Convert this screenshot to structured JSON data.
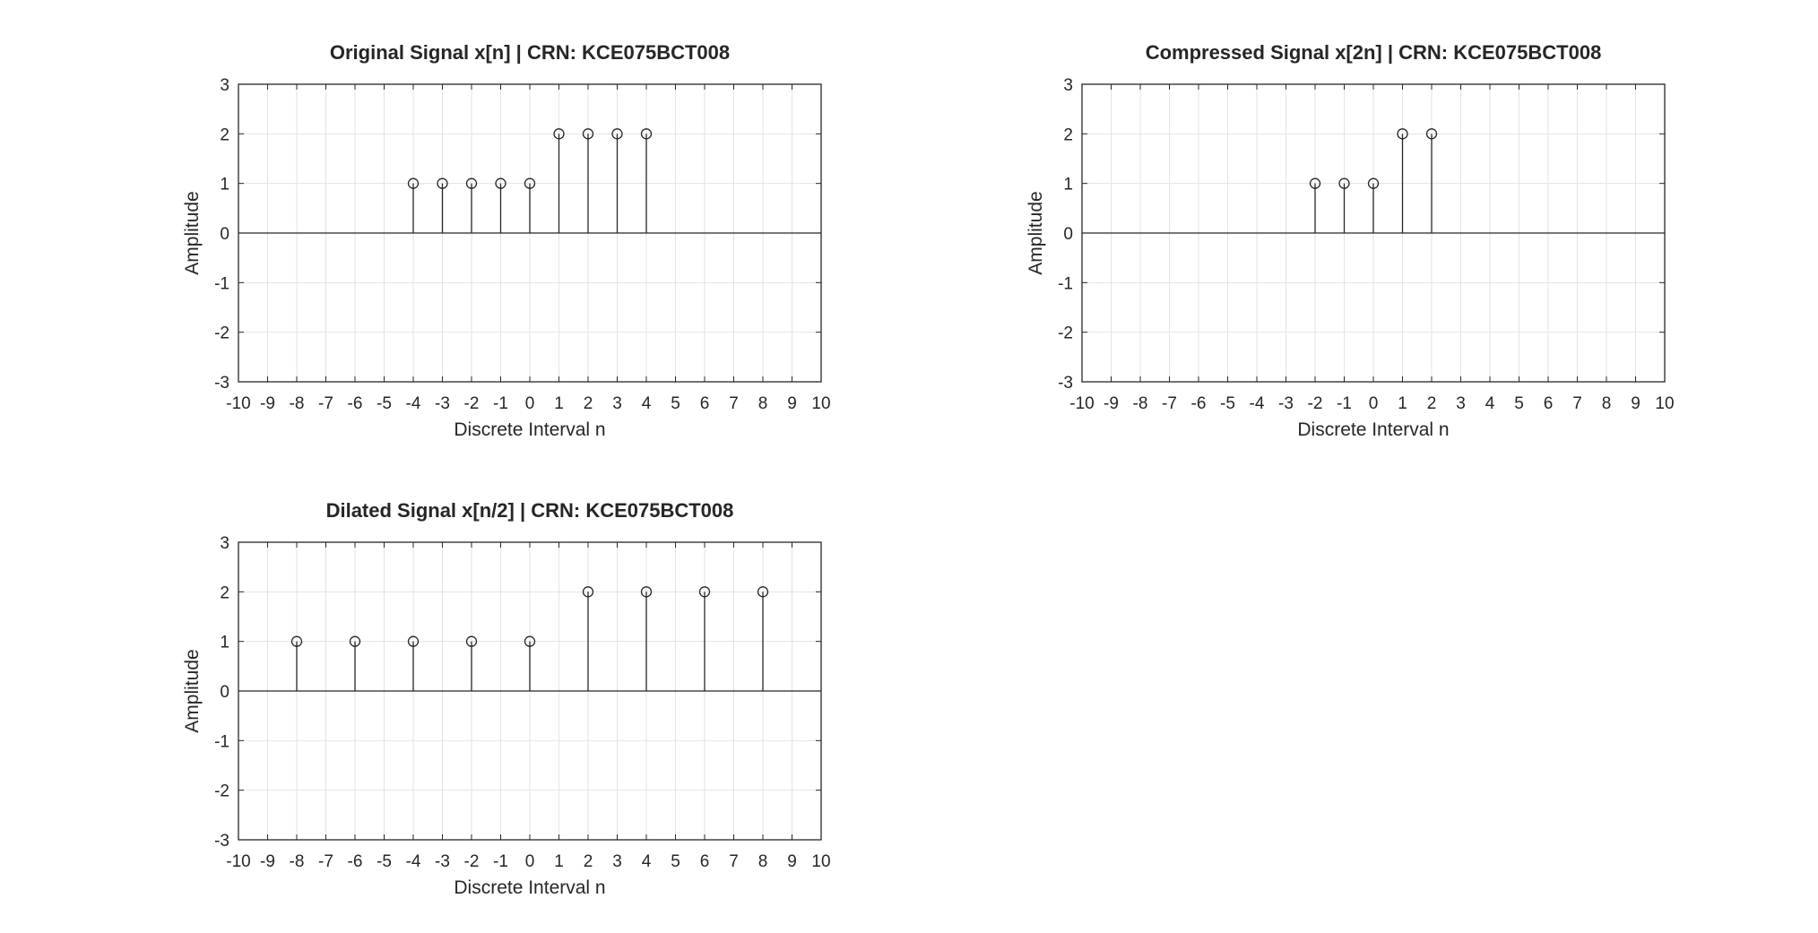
{
  "chart_data": [
    {
      "type": "stem",
      "title": "Original Signal x[n] | CRN: KCE075BCT008",
      "xlabel": "Discrete Interval n",
      "ylabel": "Amplitude",
      "xlim": [
        -10,
        10
      ],
      "ylim": [
        -3,
        3
      ],
      "xticks": [
        -10,
        -9,
        -8,
        -7,
        -6,
        -5,
        -4,
        -3,
        -2,
        -1,
        0,
        1,
        2,
        3,
        4,
        5,
        6,
        7,
        8,
        9,
        10
      ],
      "yticks": [
        -3,
        -2,
        -1,
        0,
        1,
        2,
        3
      ],
      "grid": true,
      "marker": "circle",
      "x": [
        -4,
        -3,
        -2,
        -1,
        0,
        1,
        2,
        3,
        4
      ],
      "y": [
        1,
        1,
        1,
        1,
        1,
        2,
        2,
        2,
        2
      ]
    },
    {
      "type": "stem",
      "title": "Compressed Signal x[2n] | CRN: KCE075BCT008",
      "xlabel": "Discrete Interval n",
      "ylabel": "Amplitude",
      "xlim": [
        -10,
        10
      ],
      "ylim": [
        -3,
        3
      ],
      "xticks": [
        -10,
        -9,
        -8,
        -7,
        -6,
        -5,
        -4,
        -3,
        -2,
        -1,
        0,
        1,
        2,
        3,
        4,
        5,
        6,
        7,
        8,
        9,
        10
      ],
      "yticks": [
        -3,
        -2,
        -1,
        0,
        1,
        2,
        3
      ],
      "grid": true,
      "marker": "circle",
      "x": [
        -2,
        -1,
        0,
        1,
        2
      ],
      "y": [
        1,
        1,
        1,
        2,
        2
      ]
    },
    {
      "type": "stem",
      "title": "Dilated Signal x[n/2] | CRN: KCE075BCT008",
      "xlabel": "Discrete Interval n",
      "ylabel": "Amplitude",
      "xlim": [
        -10,
        10
      ],
      "ylim": [
        -3,
        3
      ],
      "xticks": [
        -10,
        -9,
        -8,
        -7,
        -6,
        -5,
        -4,
        -3,
        -2,
        -1,
        0,
        1,
        2,
        3,
        4,
        5,
        6,
        7,
        8,
        9,
        10
      ],
      "yticks": [
        -3,
        -2,
        -1,
        0,
        1,
        2,
        3
      ],
      "grid": true,
      "marker": "circle",
      "x": [
        -8,
        -6,
        -4,
        -2,
        0,
        2,
        4,
        6,
        8
      ],
      "y": [
        1,
        1,
        1,
        1,
        1,
        2,
        2,
        2,
        2
      ]
    }
  ]
}
